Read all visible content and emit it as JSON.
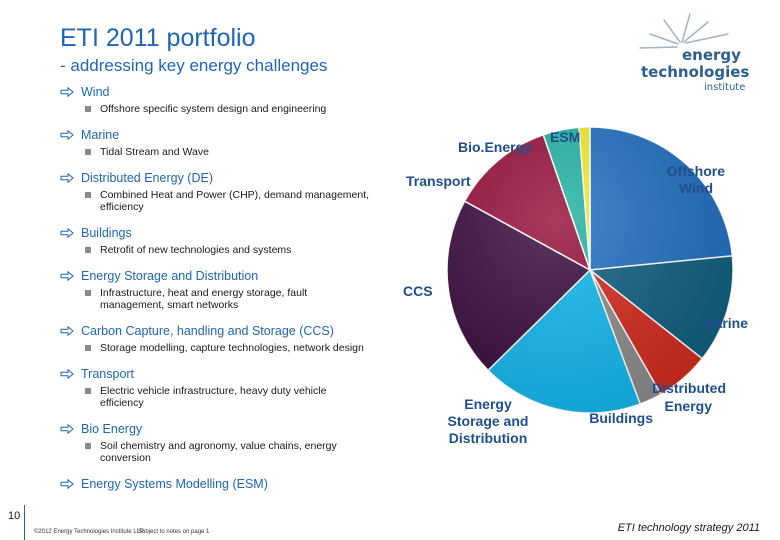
{
  "header": {
    "title": "ETI 2011 portfolio",
    "subtitle": "- addressing key energy challenges"
  },
  "logo": {
    "line1": "energy",
    "line2": "technologies",
    "line3": "institute",
    "colors": {
      "text": "#2a5f8f",
      "rays": "#9fb3c8"
    }
  },
  "bullets": [
    {
      "label": "Wind",
      "sub": "Offshore specific system design and engineering"
    },
    {
      "label": "Marine",
      "sub": "Tidal Stream and Wave"
    },
    {
      "label": "Distributed Energy (DE)",
      "sub": "Combined Heat and Power (CHP), demand management, efficiency"
    },
    {
      "label": "Buildings",
      "sub": "Retrofit of new technologies and systems"
    },
    {
      "label": "Energy Storage and Distribution",
      "sub": "Infrastructure, heat and energy storage, fault management, smart networks"
    },
    {
      "label": "Carbon Capture, handling and Storage (CCS)",
      "sub": "Storage modelling, capture technologies, network design"
    },
    {
      "label": "Transport",
      "sub": "Electric vehicle infrastructure, heavy duty vehicle efficiency"
    },
    {
      "label": "Bio Energy",
      "sub": "Soil chemistry and agronomy, value chains, energy conversion"
    },
    {
      "label": "Energy Systems Modelling (ESM)",
      "sub": ""
    }
  ],
  "chart_data": {
    "type": "pie",
    "title": "",
    "slices": [
      {
        "label": "Offshore Wind",
        "value": 23,
        "color": "#1f6fc0"
      },
      {
        "label": "Marine",
        "value": 12,
        "color": "#0e5f7e"
      },
      {
        "label": "Distributed Energy",
        "value": 6,
        "color": "#d42a1e"
      },
      {
        "label": "Buildings",
        "value": 2.5,
        "color": "#8c8c8c"
      },
      {
        "label": "Energy Storage and Distribution",
        "value": 18,
        "color": "#12b8ee"
      },
      {
        "label": "CCS",
        "value": 20,
        "color": "#3a0c3e"
      },
      {
        "label": "Transport",
        "value": 11.5,
        "color": "#96103a"
      },
      {
        "label": "Bio.Energy",
        "value": 4,
        "color": "#21b3a4"
      },
      {
        "label": "ESM",
        "value": 1.2,
        "color": "#f2ec2a"
      }
    ],
    "labels": {
      "bio": "Bio.Energy",
      "esm": "ESM",
      "offshore1": "Offshore",
      "offshore2": "Wind",
      "transport": "Transport",
      "ccs": "CCS",
      "marine": "Marine",
      "de1": "Distributed",
      "de2": "Energy",
      "buildings": "Buildings",
      "esd1": "Energy",
      "esd2": "Storage and",
      "esd3": "Distribution"
    },
    "label_color": "#1f4f8a"
  },
  "footer": {
    "page_number": "10",
    "copyright": "©2012 Energy Technologies Institute LLP",
    "note": "Subject to notes on page 1",
    "strategy": "ETI technology strategy 2011"
  }
}
